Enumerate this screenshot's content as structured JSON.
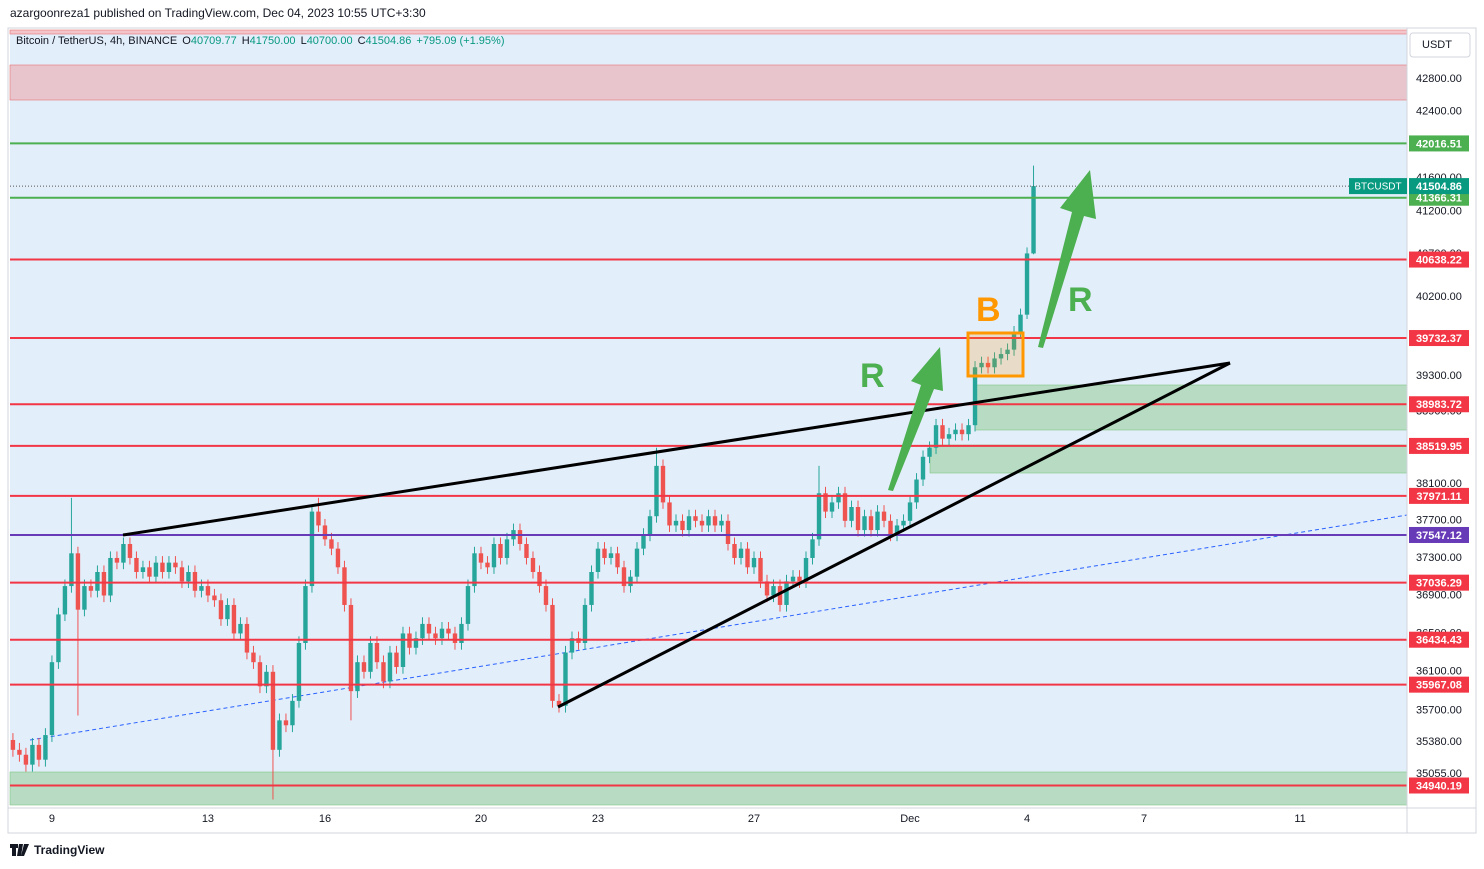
{
  "header": {
    "publish_line": "azargoonreza1 published on TradingView.com, Dec 04, 2023 10:55 UTC+3:30"
  },
  "chart_data": {
    "type": "candlestick",
    "legend": {
      "symbol": "Bitcoin / TetherUS, 4h, BINANCE",
      "o_label": "O",
      "open": "40709.77",
      "h_label": "H",
      "high": "41750.00",
      "l_label": "L",
      "low": "40700.00",
      "c_label": "C",
      "close": "41504.86",
      "change": "+795.09 (+1.95%)"
    },
    "currency": "USDT",
    "up_color": "#26a69a",
    "down_color": "#ef5350",
    "x": [
      168,
      172,
      176,
      180,
      184,
      188,
      192,
      196,
      200,
      204,
      208,
      212,
      216,
      220,
      224,
      228,
      232,
      236,
      240,
      244,
      248,
      252,
      256,
      260,
      264,
      268,
      272,
      276,
      280,
      284,
      288,
      292,
      296,
      300,
      304,
      308,
      312,
      316,
      320,
      324,
      328,
      332,
      336,
      340,
      344,
      348,
      352,
      356,
      360,
      364,
      368,
      372,
      376,
      380,
      384,
      388,
      392,
      396,
      400,
      404,
      408,
      412,
      416,
      420,
      424,
      428,
      432,
      436,
      440,
      444,
      448,
      452,
      456,
      460,
      464,
      468,
      472,
      476,
      480,
      484,
      488,
      492,
      496,
      500,
      504,
      508,
      512,
      516,
      520,
      524,
      528,
      532,
      536,
      540,
      544,
      548,
      552,
      556,
      560,
      564,
      568,
      572,
      576,
      580,
      584,
      588,
      592,
      596,
      600,
      604,
      608,
      612,
      616,
      620,
      624,
      628,
      632,
      636,
      640,
      644,
      648,
      652,
      656,
      660,
      664,
      668,
      672,
      676,
      680,
      684,
      688,
      692,
      696,
      700,
      704,
      708,
      712,
      716,
      720,
      724,
      728,
      732,
      736,
      740,
      744,
      748,
      752,
      756,
      760,
      764,
      768,
      772,
      776,
      780,
      784,
      788,
      792,
      796
    ],
    "ohlc": [
      [
        35400,
        35470,
        35230,
        35300
      ],
      [
        35300,
        35370,
        35180,
        35250
      ],
      [
        35250,
        35320,
        35080,
        35150
      ],
      [
        35150,
        35420,
        35080,
        35350
      ],
      [
        35350,
        35420,
        35130,
        35200
      ],
      [
        35200,
        35520,
        35130,
        35450
      ],
      [
        35450,
        36270,
        35380,
        36200
      ],
      [
        36200,
        36770,
        36130,
        36700
      ],
      [
        36700,
        37070,
        36630,
        37000
      ],
      [
        37000,
        37950,
        36930,
        37350
      ],
      [
        37350,
        37420,
        35650,
        36750
      ],
      [
        36750,
        37070,
        36680,
        37000
      ],
      [
        37000,
        37070,
        36880,
        36950
      ],
      [
        36950,
        37220,
        36880,
        37150
      ],
      [
        37150,
        37220,
        36830,
        36900
      ],
      [
        36900,
        37370,
        36830,
        37300
      ],
      [
        37300,
        37370,
        37180,
        37250
      ],
      [
        37250,
        37520,
        37180,
        37450
      ],
      [
        37450,
        37520,
        37230,
        37300
      ],
      [
        37300,
        37370,
        37080,
        37150
      ],
      [
        37150,
        37270,
        37080,
        37200
      ],
      [
        37200,
        37270,
        37030,
        37100
      ],
      [
        37100,
        37320,
        37030,
        37250
      ],
      [
        37250,
        37320,
        37080,
        37150
      ],
      [
        37150,
        37320,
        37080,
        37250
      ],
      [
        37250,
        37320,
        37130,
        37200
      ],
      [
        37200,
        37270,
        36980,
        37050
      ],
      [
        37050,
        37220,
        36980,
        37150
      ],
      [
        37150,
        37220,
        36880,
        36950
      ],
      [
        36950,
        37070,
        36880,
        37000
      ],
      [
        37000,
        37070,
        36830,
        36900
      ],
      [
        36900,
        36970,
        36780,
        36850
      ],
      [
        36850,
        36920,
        36580,
        36650
      ],
      [
        36650,
        36870,
        36580,
        36800
      ],
      [
        36800,
        36870,
        36430,
        36500
      ],
      [
        36500,
        36670,
        36430,
        36600
      ],
      [
        36600,
        36670,
        36230,
        36300
      ],
      [
        36300,
        36370,
        36130,
        36200
      ],
      [
        36200,
        36270,
        35880,
        35950
      ],
      [
        35950,
        36170,
        35880,
        36100
      ],
      [
        36100,
        36170,
        34800,
        35300
      ],
      [
        35300,
        35670,
        35230,
        35600
      ],
      [
        35600,
        35670,
        35480,
        35550
      ],
      [
        35550,
        35870,
        35480,
        35800
      ],
      [
        35800,
        36470,
        35730,
        36400
      ],
      [
        36400,
        37070,
        36330,
        37000
      ],
      [
        37000,
        37870,
        36930,
        37800
      ],
      [
        37800,
        37950,
        37580,
        37650
      ],
      [
        37650,
        37720,
        37430,
        37500
      ],
      [
        37500,
        37570,
        37330,
        37400
      ],
      [
        37400,
        37470,
        37130,
        37200
      ],
      [
        37200,
        37270,
        36730,
        36800
      ],
      [
        36800,
        36870,
        35600,
        35900
      ],
      [
        35900,
        36270,
        35830,
        36200
      ],
      [
        36200,
        36270,
        36030,
        36100
      ],
      [
        36100,
        36470,
        36030,
        36400
      ],
      [
        36400,
        36470,
        36130,
        36200
      ],
      [
        36200,
        36270,
        35930,
        36000
      ],
      [
        36000,
        36370,
        35930,
        36300
      ],
      [
        36300,
        36370,
        36080,
        36150
      ],
      [
        36150,
        36570,
        36080,
        36500
      ],
      [
        36500,
        36570,
        36280,
        36350
      ],
      [
        36350,
        36520,
        36280,
        36450
      ],
      [
        36450,
        36670,
        36380,
        36600
      ],
      [
        36600,
        36670,
        36430,
        36500
      ],
      [
        36500,
        36570,
        36380,
        36450
      ],
      [
        36450,
        36620,
        36380,
        36550
      ],
      [
        36550,
        36620,
        36430,
        36500
      ],
      [
        36500,
        36570,
        36330,
        36400
      ],
      [
        36400,
        36670,
        36330,
        36600
      ],
      [
        36600,
        37070,
        36530,
        37000
      ],
      [
        37000,
        37420,
        36930,
        37350
      ],
      [
        37350,
        37420,
        37180,
        37250
      ],
      [
        37250,
        37320,
        37130,
        37200
      ],
      [
        37200,
        37520,
        37130,
        37450
      ],
      [
        37450,
        37520,
        37230,
        37300
      ],
      [
        37300,
        37570,
        37230,
        37500
      ],
      [
        37500,
        37670,
        37430,
        37600
      ],
      [
        37600,
        37670,
        37380,
        37450
      ],
      [
        37450,
        37520,
        37230,
        37300
      ],
      [
        37300,
        37370,
        37080,
        37150
      ],
      [
        37150,
        37220,
        36930,
        37000
      ],
      [
        37000,
        37070,
        36730,
        36800
      ],
      [
        36800,
        36870,
        35730,
        35800
      ],
      [
        35800,
        35870,
        35680,
        35750
      ],
      [
        35750,
        36370,
        35680,
        36300
      ],
      [
        36300,
        36520,
        36230,
        36450
      ],
      [
        36450,
        36520,
        36330,
        36400
      ],
      [
        36400,
        36870,
        36330,
        36800
      ],
      [
        36800,
        37220,
        36730,
        37150
      ],
      [
        37150,
        37470,
        37080,
        37400
      ],
      [
        37400,
        37470,
        37230,
        37300
      ],
      [
        37300,
        37420,
        37230,
        37350
      ],
      [
        37350,
        37420,
        37130,
        37200
      ],
      [
        37200,
        37270,
        36930,
        37000
      ],
      [
        37000,
        37170,
        36930,
        37100
      ],
      [
        37100,
        37470,
        37030,
        37400
      ],
      [
        37400,
        37620,
        37330,
        37550
      ],
      [
        37550,
        37820,
        37480,
        37750
      ],
      [
        37750,
        38500,
        37680,
        38300
      ],
      [
        38300,
        38370,
        37830,
        37900
      ],
      [
        37900,
        37970,
        37580,
        37650
      ],
      [
        37650,
        37770,
        37580,
        37700
      ],
      [
        37700,
        37770,
        37530,
        37600
      ],
      [
        37600,
        37820,
        37530,
        37750
      ],
      [
        37750,
        37820,
        37630,
        37700
      ],
      [
        37700,
        37770,
        37580,
        37650
      ],
      [
        37650,
        37820,
        37580,
        37750
      ],
      [
        37750,
        37820,
        37580,
        37650
      ],
      [
        37650,
        37770,
        37580,
        37700
      ],
      [
        37700,
        37770,
        37380,
        37450
      ],
      [
        37450,
        37520,
        37230,
        37300
      ],
      [
        37300,
        37470,
        37230,
        37400
      ],
      [
        37400,
        37470,
        37130,
        37200
      ],
      [
        37200,
        37370,
        37130,
        37300
      ],
      [
        37300,
        37370,
        36980,
        37050
      ],
      [
        37050,
        37120,
        36830,
        36900
      ],
      [
        36900,
        37070,
        36830,
        37000
      ],
      [
        37000,
        37070,
        36730,
        36800
      ],
      [
        36800,
        37120,
        36730,
        37050
      ],
      [
        37050,
        37170,
        36980,
        37100
      ],
      [
        37100,
        37170,
        36980,
        37050
      ],
      [
        37050,
        37370,
        36980,
        37300
      ],
      [
        37300,
        37570,
        37230,
        37500
      ],
      [
        37500,
        38300,
        37430,
        38000
      ],
      [
        38000,
        38070,
        37730,
        37800
      ],
      [
        37800,
        37970,
        37730,
        37900
      ],
      [
        37900,
        38070,
        37830,
        38000
      ],
      [
        38000,
        38070,
        37630,
        37700
      ],
      [
        37700,
        37920,
        37630,
        37850
      ],
      [
        37850,
        37920,
        37530,
        37600
      ],
      [
        37600,
        37820,
        37530,
        37750
      ],
      [
        37750,
        37820,
        37530,
        37600
      ],
      [
        37600,
        37870,
        37530,
        37800
      ],
      [
        37800,
        37870,
        37630,
        37700
      ],
      [
        37700,
        37770,
        37480,
        37550
      ],
      [
        37550,
        37720,
        37480,
        37650
      ],
      [
        37650,
        37770,
        37580,
        37700
      ],
      [
        37700,
        37970,
        37630,
        37900
      ],
      [
        37900,
        38220,
        37830,
        38150
      ],
      [
        38150,
        38470,
        38080,
        38400
      ],
      [
        38400,
        38570,
        38330,
        38500
      ],
      [
        38500,
        38820,
        38430,
        38750
      ],
      [
        38750,
        38820,
        38530,
        38600
      ],
      [
        38600,
        38720,
        38530,
        38650
      ],
      [
        38650,
        38770,
        38580,
        38700
      ],
      [
        38700,
        38770,
        38580,
        38650
      ],
      [
        38650,
        38820,
        38580,
        38750
      ],
      [
        38750,
        39470,
        38680,
        39400
      ],
      [
        39400,
        39520,
        39330,
        39450
      ],
      [
        39450,
        39520,
        39330,
        39400
      ],
      [
        39400,
        39570,
        39330,
        39500
      ],
      [
        39500,
        39620,
        39430,
        39550
      ],
      [
        39550,
        39670,
        39480,
        39600
      ],
      [
        39600,
        39870,
        39530,
        39800
      ],
      [
        39800,
        40070,
        39730,
        40000
      ],
      [
        40000,
        40780,
        39950,
        40709.77
      ],
      [
        40709.77,
        41750,
        40700,
        41504.86
      ]
    ],
    "xlim": [
      166.2,
      1025.8
    ],
    "xticks": [
      {
        "value": 192,
        "label": "9"
      },
      {
        "value": 288,
        "label": "13"
      },
      {
        "value": 360,
        "label": "16"
      },
      {
        "value": 456,
        "label": "20"
      },
      {
        "value": 528,
        "label": "23"
      },
      {
        "value": 624,
        "label": "27"
      },
      {
        "value": 720,
        "label": "Dec"
      },
      {
        "value": 792,
        "label": "4"
      },
      {
        "value": 864,
        "label": "7"
      },
      {
        "value": 960,
        "label": "11"
      }
    ],
    "ylim": [
      34745,
      43408
    ],
    "log_scale": true,
    "grid": false,
    "yticks": [
      {
        "value": 42800,
        "label": "42800.00"
      },
      {
        "value": 42400,
        "label": "42400.00"
      },
      {
        "value": 41600,
        "label": "41600.00"
      },
      {
        "value": 41200,
        "label": "41200.00"
      },
      {
        "value": 40700,
        "label": "40700.00"
      },
      {
        "value": 40200,
        "label": "40200.00"
      },
      {
        "value": 39300,
        "label": "39300.00"
      },
      {
        "value": 38900,
        "label": "38900.00"
      },
      {
        "value": 38100,
        "label": "38100.00"
      },
      {
        "value": 37700,
        "label": "37700.00"
      },
      {
        "value": 37300,
        "label": "37300.00"
      },
      {
        "value": 36900,
        "label": "36900.00"
      },
      {
        "value": 36500,
        "label": "36500.00"
      },
      {
        "value": 36100,
        "label": "36100.00"
      },
      {
        "value": 35700,
        "label": "35700.00"
      },
      {
        "value": 35380,
        "label": "35380.00"
      },
      {
        "value": 35055,
        "label": "35055.00"
      }
    ],
    "levels": [
      {
        "value": 42016.51,
        "color": "#4caf50"
      },
      {
        "value": 41366.31,
        "color": "#4caf50"
      },
      {
        "value": 40638.22,
        "color": "#f23645"
      },
      {
        "value": 39732.37,
        "color": "#f23645"
      },
      {
        "value": 38983.72,
        "color": "#f23645"
      },
      {
        "value": 38519.95,
        "color": "#f23645"
      },
      {
        "value": 37971.11,
        "color": "#f23645"
      },
      {
        "value": 37547.12,
        "color": "#673ab7"
      },
      {
        "value": 37036.29,
        "color": "#f23645"
      },
      {
        "value": 36434.43,
        "color": "#f23645"
      },
      {
        "value": 35967.08,
        "color": "#f23645"
      },
      {
        "value": 34940.19,
        "color": "#f23645"
      }
    ],
    "last_price": {
      "tag": "BTCUSDT",
      "color": "#089981"
    },
    "annotations": [
      "R",
      "B",
      "R"
    ]
  },
  "footer": {
    "brand": "TradingView"
  }
}
